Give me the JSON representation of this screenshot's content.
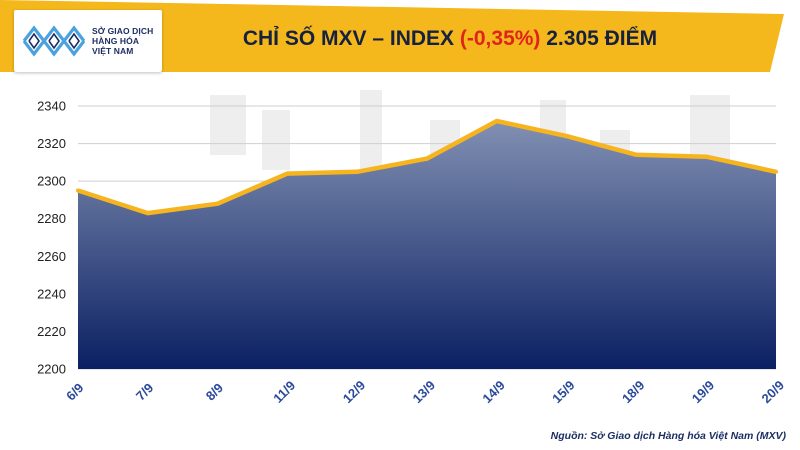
{
  "brand": {
    "name_lines": [
      "SỞ GIAO DỊCH",
      "HÀNG HÓA",
      "VIỆT NAM"
    ]
  },
  "title": {
    "prefix": "CHỈ SỐ MXV – INDEX ",
    "change": "(-0,35%)",
    "suffix": " 2.305 ĐIỂM"
  },
  "colors": {
    "header": "#f4b81c",
    "line": "#f6b51f",
    "area_top": "#8190b2",
    "area_bottom": "#0b2063",
    "negative": "#e0241b",
    "grid": "#cfcfcf"
  },
  "chart_data": {
    "type": "area",
    "categories": [
      "6/9",
      "7/9",
      "8/9",
      "11/9",
      "12/9",
      "13/9",
      "14/9",
      "15/9",
      "18/9",
      "19/9",
      "20/9"
    ],
    "values": [
      2295,
      2283,
      2288,
      2304,
      2305,
      2312,
      2332,
      2324,
      2314,
      2313,
      2305
    ],
    "ylim": [
      2200,
      2340
    ],
    "yticks": [
      2200,
      2220,
      2240,
      2260,
      2280,
      2300,
      2320,
      2340
    ],
    "grid": true
  },
  "source": "Nguồn: Sở Giao dịch Hàng hóa Việt Nam (MXV)"
}
